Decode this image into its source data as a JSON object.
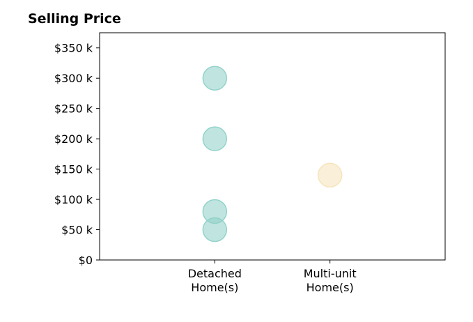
{
  "chart_data": {
    "type": "scatter",
    "title": "Selling Price",
    "xlabel": "",
    "ylabel": "",
    "categories": [
      "Detached\nHome(s)",
      "Multi-unit\nHome(s)"
    ],
    "series": [
      {
        "category": "Detached\nHome(s)",
        "color": "#8ccfc7",
        "values": [
          300000,
          200000,
          80000,
          50000
        ]
      },
      {
        "category": "Multi-unit\nHome(s)",
        "color": "#f6e2b8",
        "values": [
          140000
        ]
      }
    ],
    "ylim": [
      0,
      375000
    ],
    "yticks": [
      0,
      50000,
      100000,
      150000,
      200000,
      250000,
      300000,
      350000
    ],
    "ytick_labels": [
      "$0",
      "$50 k",
      "$100 k",
      "$150 k",
      "$200 k",
      "$250 k",
      "$300 k",
      "$350 k"
    ],
    "grid": false,
    "legend": "none"
  }
}
